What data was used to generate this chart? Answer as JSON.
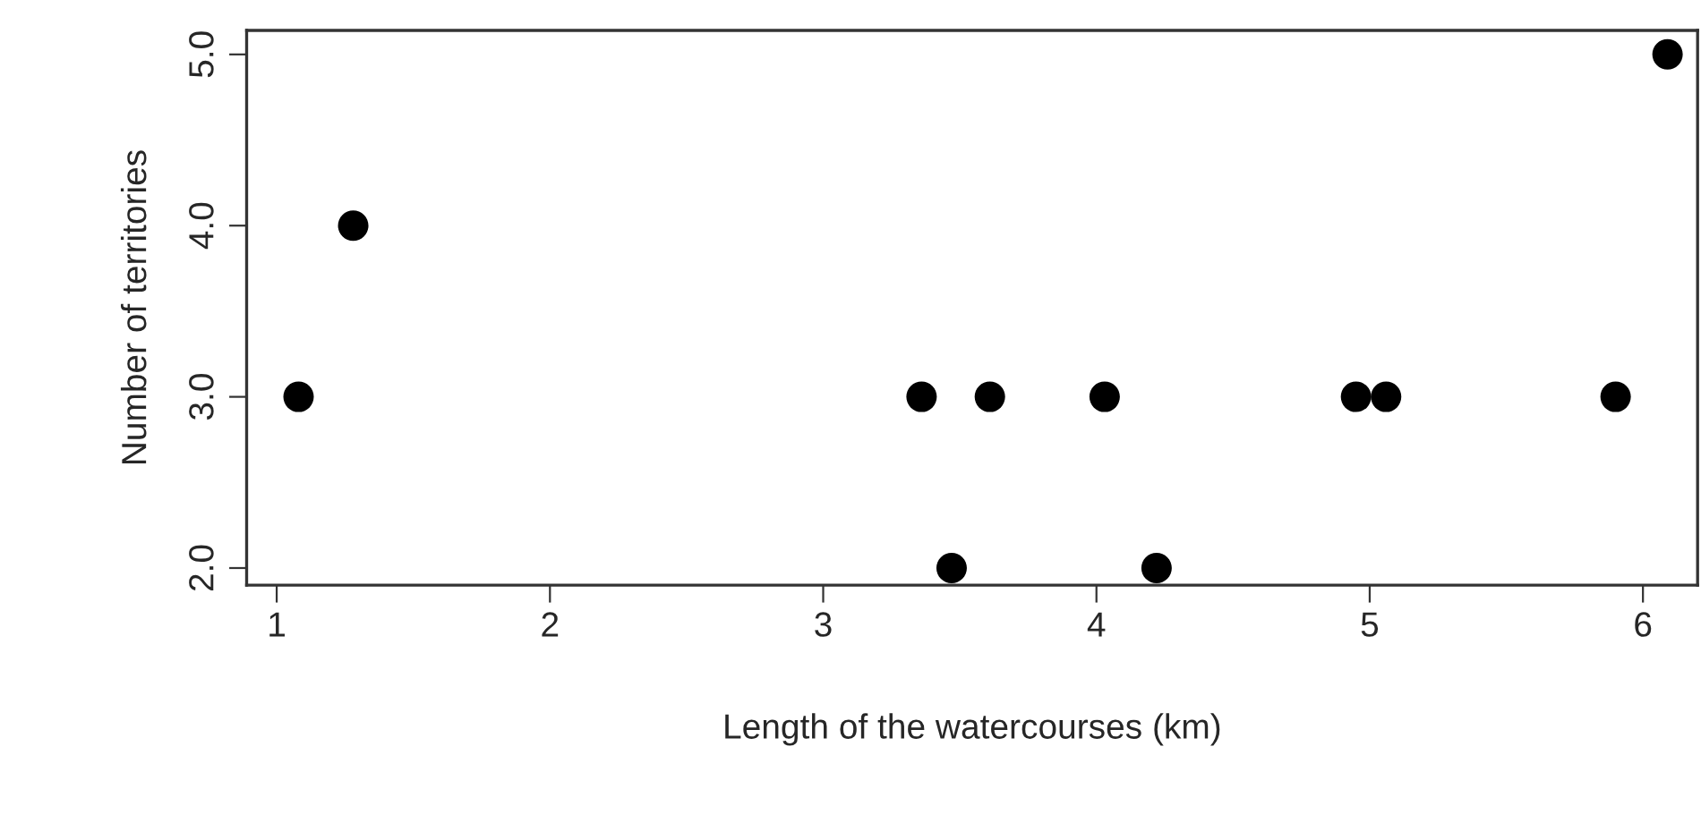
{
  "chart_data": {
    "type": "scatter",
    "xlabel": "Length of the watercourses (km)",
    "ylabel": "Number of territories",
    "x": [
      1.08,
      1.28,
      3.36,
      3.47,
      3.61,
      4.03,
      4.22,
      4.95,
      5.06,
      5.9,
      6.09
    ],
    "series": [
      {
        "color": "#000000",
        "values": [
          3,
          4,
          3,
          2,
          3,
          3,
          2,
          3,
          3,
          3,
          5
        ]
      }
    ],
    "xlim": [
      0.89,
      6.2
    ],
    "ylim": [
      1.9,
      5.14
    ],
    "xticks": [
      1,
      2,
      3,
      4,
      5,
      6
    ],
    "yticks": [
      {
        "value": 2,
        "label": "2.0"
      },
      {
        "value": 3,
        "label": "3.0"
      },
      {
        "value": 4,
        "label": "4.0"
      },
      {
        "value": 5,
        "label": "5.0"
      }
    ],
    "marker": "circle",
    "grid": false,
    "legend": false
  }
}
